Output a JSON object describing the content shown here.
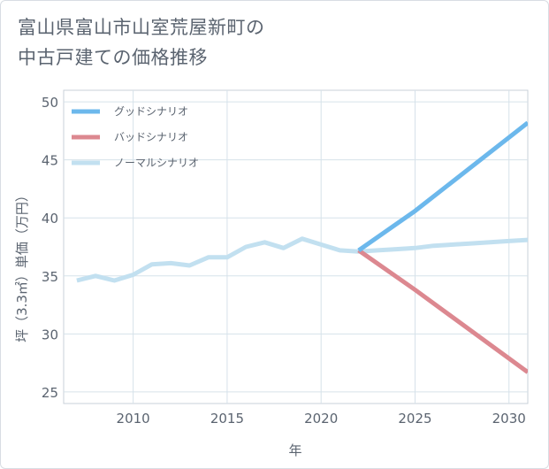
{
  "title_line1": "富山県富山市山室荒屋新町の",
  "title_line2": "中古戸建ての価格推移",
  "chart_data": {
    "type": "line",
    "xlabel": "年",
    "ylabel": "坪（3.3㎡）単価（万円）",
    "xlim": [
      2006.3,
      2031
    ],
    "ylim": [
      24,
      51
    ],
    "x_ticks": [
      2010,
      2015,
      2020,
      2025,
      2030
    ],
    "y_ticks": [
      25,
      30,
      35,
      40,
      45,
      50
    ],
    "grid": true,
    "legend_placement": "top-left",
    "series": [
      {
        "name": "グッドシナリオ",
        "color": "#6cb8ec",
        "x": [
          2022,
          2025,
          2031
        ],
        "y": [
          37.2,
          40.6,
          48.2
        ]
      },
      {
        "name": "バッドシナリオ",
        "color": "#dc8890",
        "x": [
          2022,
          2025,
          2031
        ],
        "y": [
          37.2,
          33.8,
          26.7
        ]
      },
      {
        "name": "ノーマルシナリオ",
        "color": "#c2e0f0",
        "x": [
          2007,
          2008,
          2009,
          2010,
          2011,
          2012,
          2013,
          2014,
          2015,
          2016,
          2017,
          2018,
          2019,
          2020,
          2021,
          2022,
          2023,
          2024,
          2025,
          2026,
          2027,
          2028,
          2029,
          2030,
          2031
        ],
        "y": [
          34.6,
          35.0,
          34.6,
          35.1,
          36.0,
          36.1,
          35.9,
          36.6,
          36.6,
          37.5,
          37.9,
          37.4,
          38.2,
          37.7,
          37.2,
          37.1,
          37.2,
          37.3,
          37.4,
          37.6,
          37.7,
          37.8,
          37.9,
          38.0,
          38.1
        ]
      }
    ]
  }
}
